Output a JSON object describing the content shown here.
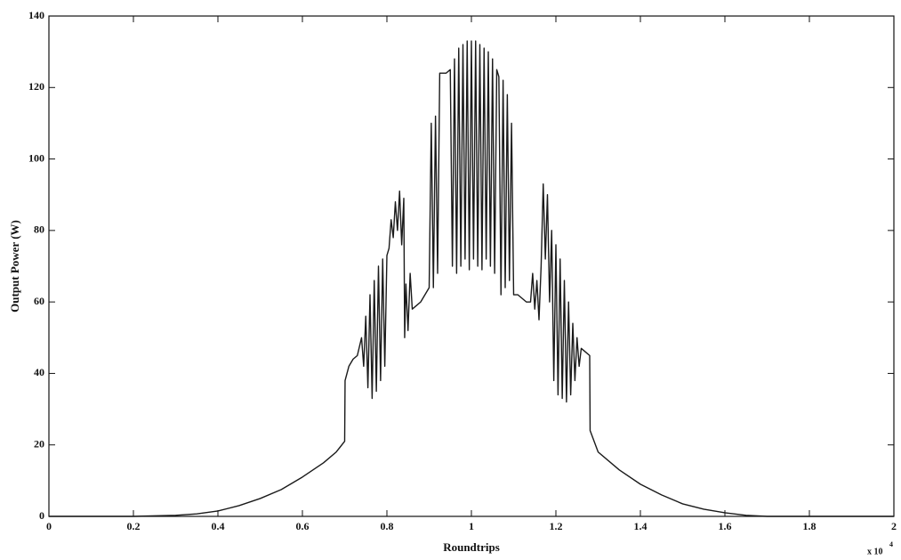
{
  "chart_data": {
    "type": "line",
    "x_label": "Roundtrips",
    "y_label": "Output Power (W)",
    "x_multiplier": "x 10",
    "x_multiplier_exponent": "4",
    "color": "#1a1a1a",
    "xlim": [
      0,
      2
    ],
    "ylim": [
      0,
      140
    ],
    "xticks": [
      0,
      0.2,
      0.4,
      0.6,
      0.8,
      1,
      1.2,
      1.4,
      1.6,
      1.8,
      2
    ],
    "yticks": [
      0,
      20,
      40,
      60,
      80,
      100,
      120,
      140
    ],
    "x": [
      0,
      0.1,
      0.2,
      0.3,
      0.35,
      0.4,
      0.45,
      0.5,
      0.55,
      0.6,
      0.65,
      0.68,
      0.7,
      0.701,
      0.71,
      0.72,
      0.73,
      0.74,
      0.745,
      0.75,
      0.755,
      0.76,
      0.765,
      0.77,
      0.775,
      0.78,
      0.785,
      0.79,
      0.795,
      0.8,
      0.805,
      0.81,
      0.815,
      0.82,
      0.825,
      0.83,
      0.835,
      0.84,
      0.842,
      0.845,
      0.85,
      0.855,
      0.86,
      0.87,
      0.88,
      0.89,
      0.9,
      0.905,
      0.91,
      0.915,
      0.92,
      0.925,
      0.94,
      0.95,
      0.955,
      0.96,
      0.965,
      0.97,
      0.975,
      0.98,
      0.985,
      0.99,
      0.995,
      1.0,
      1.005,
      1.01,
      1.015,
      1.02,
      1.025,
      1.03,
      1.035,
      1.04,
      1.045,
      1.05,
      1.055,
      1.06,
      1.065,
      1.07,
      1.075,
      1.08,
      1.085,
      1.09,
      1.095,
      1.1,
      1.11,
      1.12,
      1.13,
      1.14,
      1.145,
      1.15,
      1.155,
      1.16,
      1.165,
      1.17,
      1.175,
      1.18,
      1.185,
      1.19,
      1.195,
      1.2,
      1.205,
      1.21,
      1.215,
      1.22,
      1.225,
      1.23,
      1.235,
      1.24,
      1.245,
      1.25,
      1.255,
      1.26,
      1.27,
      1.28,
      1.281,
      1.3,
      1.35,
      1.4,
      1.45,
      1.5,
      1.55,
      1.6,
      1.65,
      1.7,
      1.8,
      2
    ],
    "values": [
      0,
      0,
      0,
      0.3,
      0.7,
      1.5,
      3,
      5,
      7.5,
      11,
      15,
      18,
      21,
      38,
      42,
      44,
      45,
      50,
      42,
      56,
      36,
      62,
      33,
      66,
      35,
      70,
      38,
      72,
      42,
      73,
      75,
      83,
      78,
      88,
      80,
      91,
      76,
      89,
      50,
      65,
      52,
      68,
      58,
      59,
      60,
      62,
      64,
      110,
      64,
      112,
      68,
      124,
      124,
      125,
      70,
      128,
      68,
      131,
      70,
      132,
      72,
      133,
      69,
      133,
      72,
      133,
      70,
      132,
      69,
      131,
      72,
      130,
      70,
      128,
      68,
      125,
      123,
      62,
      122,
      64,
      118,
      66,
      110,
      62,
      62,
      61,
      60,
      60,
      68,
      58,
      66,
      55,
      70,
      93,
      72,
      90,
      60,
      80,
      38,
      76,
      34,
      72,
      33,
      66,
      32,
      60,
      34,
      54,
      38,
      50,
      42,
      47,
      46,
      45,
      24,
      18,
      13,
      9,
      6,
      3.5,
      2,
      1,
      0.3,
      0,
      0,
      0
    ]
  }
}
